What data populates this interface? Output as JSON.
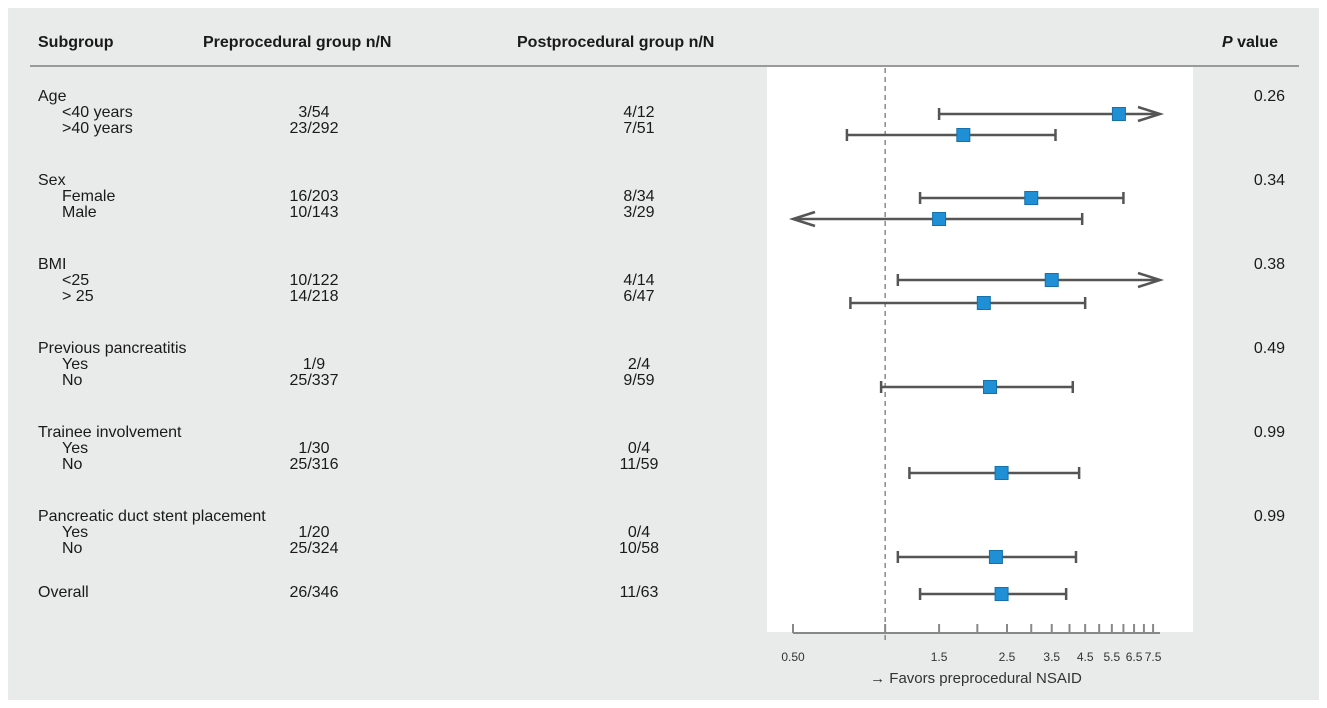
{
  "headers": {
    "subgroup": "Subgroup",
    "pre": "Preprocedural group n/N",
    "post": "Postprocedural group n/N",
    "p_italic": "P",
    "p_rest": " value"
  },
  "rows": [
    {
      "label": "Age",
      "kind": "group",
      "p": "0.26"
    },
    {
      "label": "<40 years",
      "kind": "sub",
      "pre": "3/54",
      "post": "4/12"
    },
    {
      "label": ">40 years",
      "kind": "sub",
      "pre": "23/292",
      "post": "7/51"
    },
    {
      "label": "Sex",
      "kind": "group",
      "p": "0.34"
    },
    {
      "label": "Female",
      "kind": "sub",
      "pre": "16/203",
      "post": "8/34"
    },
    {
      "label": "Male",
      "kind": "sub",
      "pre": "10/143",
      "post": "3/29"
    },
    {
      "label": "BMI",
      "kind": "group",
      "p": "0.38"
    },
    {
      "label": "<25",
      "kind": "sub",
      "pre": "10/122",
      "post": "4/14"
    },
    {
      "label": "> 25",
      "kind": "sub",
      "pre": "14/218",
      "post": "6/47"
    },
    {
      "label": "Previous pancreatitis",
      "kind": "group",
      "p": "0.49"
    },
    {
      "label": "Yes",
      "kind": "sub",
      "pre": "1/9",
      "post": "2/4"
    },
    {
      "label": "No",
      "kind": "sub",
      "pre": "25/337",
      "post": "9/59"
    },
    {
      "label": "Trainee involvement",
      "kind": "group",
      "p": "0.99"
    },
    {
      "label": "Yes",
      "kind": "sub",
      "pre": "1/30",
      "post": "0/4"
    },
    {
      "label": "No",
      "kind": "sub",
      "pre": "25/316",
      "post": "11/59"
    },
    {
      "label": "Pancreatic duct stent placement",
      "kind": "group",
      "p": "0.99"
    },
    {
      "label": "Yes",
      "kind": "sub",
      "pre": "1/20",
      "post": "0/4"
    },
    {
      "label": "No",
      "kind": "sub",
      "pre": "25/324",
      "post": "10/58"
    },
    {
      "label": "Overall",
      "kind": "overall",
      "pre": "26/346",
      "post": "11/63"
    }
  ],
  "chart_data": {
    "type": "scatter",
    "scale": "log",
    "reference_value": 1,
    "xlim": [
      0.5,
      7.9
    ],
    "ticks": [
      0.5,
      1,
      1.5,
      2,
      2.5,
      3,
      3.5,
      4,
      4.5,
      5,
      5.5,
      6,
      6.5,
      7,
      7.5
    ],
    "tick_labels": {
      "0.5": "0.50",
      "1.5": "1.5",
      "2.5": "2.5",
      "3.5": "3.5",
      "4.5": "4.5",
      "5.5": "5.5",
      "6.5": "6.5",
      "7.5": "7.5"
    },
    "xlabel": "→ Favors preprocedural NSAID",
    "marker_color": "#1f8fd6",
    "line_color": "#555555",
    "estimates": [
      {
        "row": "<40 years",
        "or": 5.8,
        "low": 1.5,
        "high": 7.9,
        "arrow_high": true
      },
      {
        "row": ">40 years",
        "or": 1.8,
        "low": 0.75,
        "high": 3.6
      },
      {
        "row": "Female",
        "or": 3.0,
        "low": 1.3,
        "high": 6.0
      },
      {
        "row": "Male",
        "or": 1.5,
        "low": 0.5,
        "high": 4.4,
        "arrow_low": true
      },
      {
        "row": "<25",
        "or": 3.5,
        "low": 1.1,
        "high": 7.9,
        "arrow_high": true
      },
      {
        "row": "> 25",
        "or": 2.1,
        "low": 0.77,
        "high": 4.5
      },
      {
        "row": "No",
        "or": 2.2,
        "low": 0.97,
        "high": 4.1
      },
      {
        "row": "No",
        "or": 2.4,
        "low": 1.2,
        "high": 4.3
      },
      {
        "row": "No",
        "or": 2.3,
        "low": 1.1,
        "high": 4.2
      },
      {
        "row": "Overall",
        "or": 2.4,
        "low": 1.3,
        "high": 3.9
      }
    ]
  }
}
